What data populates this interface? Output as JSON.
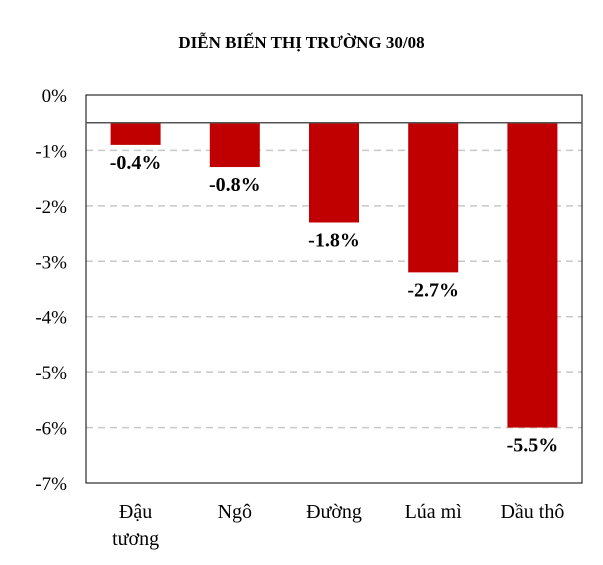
{
  "chart_data": {
    "type": "bar",
    "title": "DIỄN BIẾN THỊ TRƯỜNG 30/08",
    "categories": [
      [
        "Đậu",
        "tương"
      ],
      [
        "Ngô"
      ],
      [
        "Đường"
      ],
      [
        "Lúa mì"
      ],
      [
        "Dầu thô"
      ]
    ],
    "values": [
      -0.4,
      -0.8,
      -1.8,
      -2.7,
      -5.5
    ],
    "data_labels": [
      "-0.4%",
      "-0.8%",
      "-1.8%",
      "-2.7%",
      "-5.5%"
    ],
    "ylim": [
      -7,
      0
    ],
    "baseline": -0.5,
    "yticks": [
      0,
      -1,
      -2,
      -3,
      -4,
      -5,
      -6,
      -7
    ],
    "ytick_labels": [
      "0%",
      "-1%",
      "-2%",
      "-3%",
      "-4%",
      "-5%",
      "-6%",
      "-7%"
    ],
    "grid": "horizontal dashed",
    "colors": {
      "bar": "#c00000",
      "grid": "#c8c8c8",
      "frame": "#000000"
    }
  }
}
